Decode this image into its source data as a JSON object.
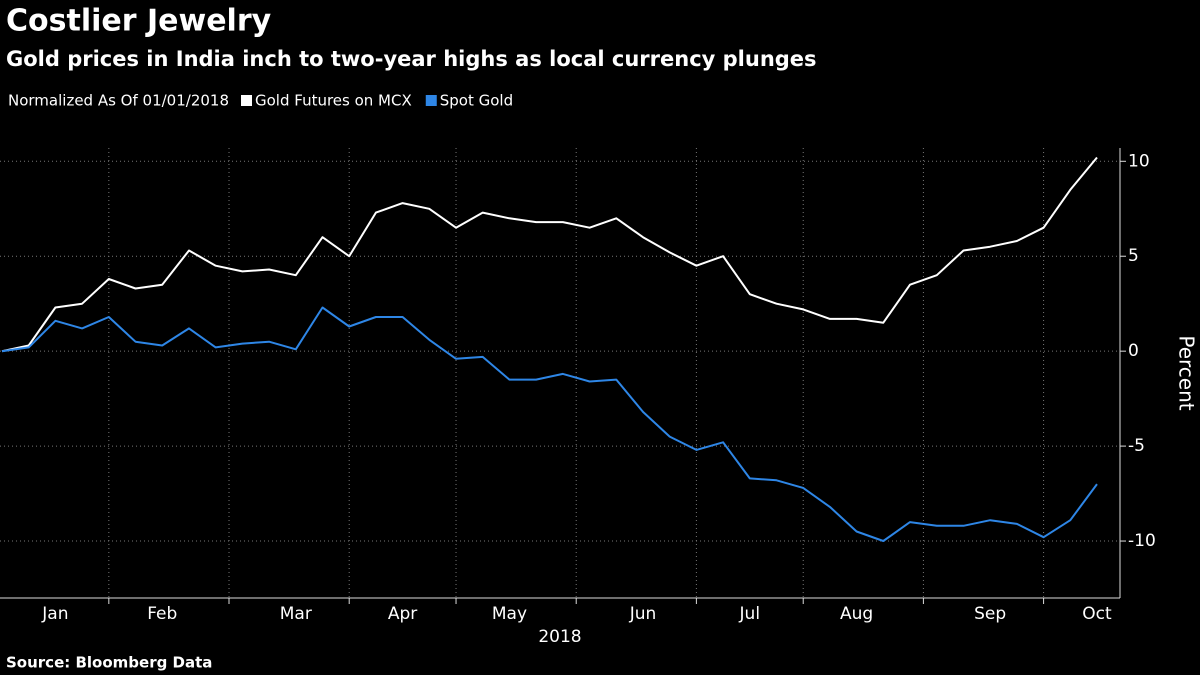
{
  "chart_data": {
    "type": "line",
    "title": "Costlier Jewelry",
    "subtitle": "Gold prices in India inch to two-year highs as local currency plunges",
    "legend_title": "Normalized As Of 01/01/2018",
    "y_label": "Percent",
    "x_label": "2018",
    "source": "Source: Bloomberg Data",
    "categories": [
      null,
      null,
      "Jan",
      null,
      null,
      null,
      "Feb",
      null,
      null,
      null,
      null,
      "Mar",
      null,
      null,
      null,
      "Apr",
      null,
      null,
      null,
      "May",
      null,
      null,
      null,
      null,
      "Jun",
      null,
      null,
      null,
      "Jul",
      null,
      null,
      null,
      "Aug",
      null,
      null,
      null,
      null,
      "Sep",
      null,
      null,
      null,
      "Oct"
    ],
    "series": [
      {
        "name": "Gold Futures on MCX",
        "color": "#ffffff",
        "values": [
          0,
          0.3,
          2.3,
          2.5,
          3.8,
          3.3,
          3.5,
          5.3,
          4.5,
          4.2,
          4.3,
          4.0,
          6.0,
          5.0,
          7.3,
          7.8,
          7.5,
          6.5,
          7.3,
          7.0,
          6.8,
          6.8,
          6.5,
          7.0,
          6.0,
          5.2,
          4.5,
          5.0,
          3.0,
          2.5,
          2.2,
          1.7,
          1.7,
          1.5,
          3.5,
          4.0,
          5.3,
          5.5,
          5.8,
          6.5,
          8.5,
          10.2
        ]
      },
      {
        "name": "Spot Gold",
        "color": "#2e86e6",
        "values": [
          0,
          0.2,
          1.6,
          1.2,
          1.8,
          0.5,
          0.3,
          1.2,
          0.2,
          0.4,
          0.5,
          0.1,
          2.3,
          1.3,
          1.8,
          1.8,
          0.6,
          -0.4,
          -0.3,
          -1.5,
          -1.5,
          -1.2,
          -1.6,
          -1.5,
          -3.2,
          -4.5,
          -5.2,
          -4.8,
          -6.7,
          -6.8,
          -7.2,
          -8.2,
          -9.5,
          -10.0,
          -9.0,
          -9.2,
          -9.2,
          -8.9,
          -9.1,
          -9.8,
          -8.9,
          -7.0
        ]
      }
    ],
    "ylim": [
      -13,
      10.7
    ],
    "yticks": [
      -10,
      -5,
      0,
      5,
      10
    ],
    "grid": true
  }
}
